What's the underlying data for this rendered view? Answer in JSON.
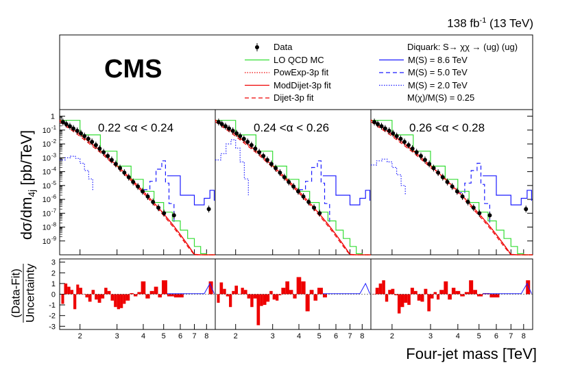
{
  "header": {
    "luminosity_value": "138 fb",
    "luminosity_exp": "-1",
    "energy": " (13 TeV)",
    "experiment": "CMS"
  },
  "axes": {
    "x_title": "Four-jet mass [TeV]",
    "y_title_main": "dσ/dm",
    "y_title_sub": "4j",
    "y_title_unit": " [pb/TeV]",
    "ratio_numerator": "(Data-Fit)",
    "ratio_denominator": "Uncertainty"
  },
  "legend": {
    "left": [
      {
        "label": "Data",
        "style": "data"
      },
      {
        "label": "LO QCD MC",
        "style": "green"
      },
      {
        "label": "PowExp-3p fit",
        "style": "red-dotted"
      },
      {
        "label": "ModDijet-3p fit",
        "style": "red-solid"
      },
      {
        "label": "Dijet-3p fit",
        "style": "red-dashed"
      }
    ],
    "right": [
      {
        "label": "Diquark: S→ χχ → (ug) (ug)",
        "style": "none"
      },
      {
        "label": "M(S) = 8.6 TeV",
        "style": "blue-solid"
      },
      {
        "label": "M(S) = 5.0 TeV",
        "style": "blue-dashed"
      },
      {
        "label": "M(S) = 2.0 TeV",
        "style": "blue-dotted"
      },
      {
        "label": "M(χ)/M(S) = 0.25",
        "style": "none"
      }
    ]
  },
  "colors": {
    "data": "#000000",
    "qcd": "#33dd33",
    "fit": "#ee0000",
    "signal": "#1a1aff",
    "ratio_bars": "#ee0000"
  },
  "chart_data": {
    "type": "line",
    "x_axis": {
      "scale": "log",
      "range_tev": [
        1.6,
        8.8
      ],
      "ticks": [
        2,
        3,
        4,
        5,
        6,
        7,
        8
      ]
    },
    "y_axis_main": {
      "scale": "log",
      "range": [
        1e-10,
        3
      ],
      "tick_exponents": [
        -9,
        -8,
        -7,
        -6,
        -5,
        -4,
        -3,
        -2,
        -1,
        0
      ],
      "tick_labels": [
        "10",
        "10",
        "10",
        "10",
        "10",
        "10",
        "10",
        "10",
        "10",
        "1"
      ]
    },
    "y_axis_ratio": {
      "range": [
        -3.3,
        3.3
      ],
      "ticks": [
        -3,
        -2,
        -1,
        0,
        1,
        2,
        3
      ]
    },
    "panels": [
      {
        "label": "0.22 <α < 0.24",
        "data_x": [
          1.66,
          1.72,
          1.79,
          1.86,
          1.94,
          2.02,
          2.1,
          2.19,
          2.28,
          2.38,
          2.48,
          2.59,
          2.71,
          2.83,
          2.96,
          3.1,
          3.25,
          3.41,
          3.58,
          3.77,
          3.97,
          4.2,
          4.45,
          4.72,
          5.02,
          5.6,
          8.2
        ],
        "data_y": [
          0.38,
          0.27,
          0.19,
          0.13,
          0.088,
          0.058,
          0.037,
          0.023,
          0.014,
          0.0082,
          0.0046,
          0.0025,
          0.00135,
          0.0007,
          0.00036,
          0.00018,
          8.5e-05,
          4e-05,
          1.8e-05,
          8.5e-06,
          3.8e-06,
          1.6e-06,
          6.5e-07,
          2.5e-07,
          1e-07,
          7e-08,
          2e-07
        ],
        "qcd_x": [
          1.6,
          2,
          2.5,
          3,
          3.5,
          4,
          4.5,
          5,
          5.5,
          6,
          6.5,
          7,
          7.5,
          8,
          8.8
        ],
        "qcd_y": [
          0.5,
          0.045,
          0.003,
          0.00025,
          2.8e-05,
          3.8e-06,
          6e-07,
          1.2e-07,
          2.8e-08,
          6e-09,
          1.5e-09,
          4e-10,
          1.2e-10,
          4e-11,
          9e-12
        ],
        "fit_x": [
          1.6,
          2,
          2.5,
          3,
          3.5,
          4,
          4.5,
          5,
          5.5,
          6,
          6.5,
          7,
          7.5,
          8,
          8.8
        ],
        "fit_y": [
          0.5,
          0.045,
          0.003,
          0.00025,
          2.8e-05,
          3.6e-06,
          5.2e-07,
          8.5e-08,
          1.5e-08,
          2.7e-09,
          5e-10,
          1e-10,
          2e-11,
          5e-12,
          1e-12
        ],
        "sig_2_x": [
          1.6,
          1.7,
          1.8,
          1.9,
          2.0,
          2.1,
          2.2,
          2.3
        ],
        "sig_2_y": [
          0.0007,
          0.001,
          0.0013,
          0.0009,
          0.0004,
          0.00012,
          3e-05,
          4e-06
        ],
        "sig_5_x": [
          4.0,
          4.3,
          4.6,
          4.9,
          5.1,
          5.3,
          5.6
        ],
        "sig_5_y": [
          5e-06,
          2e-05,
          0.00015,
          0.0006,
          1.5e-05,
          5e-07,
          2e-08
        ],
        "sig_86_x": [
          5.2,
          6,
          7,
          7.8,
          8.3,
          8.7
        ],
        "sig_86_y": [
          5e-05,
          2e-06,
          4e-07,
          1.2e-06,
          4.5e-06,
          8e-07
        ],
        "ratio_x": [
          1.63,
          1.68,
          1.74,
          1.8,
          1.86,
          1.92,
          1.98,
          2.05,
          2.12,
          2.19,
          2.27,
          2.35,
          2.43,
          2.52,
          2.61,
          2.7,
          2.8,
          2.9,
          3.0,
          3.1,
          3.2,
          3.3,
          3.45,
          3.6,
          3.75,
          3.9,
          4.1,
          4.3,
          4.5,
          4.7,
          4.9,
          5.2,
          5.6,
          8.2
        ],
        "ratio_v": [
          -0.9,
          1.0,
          0.7,
          0.4,
          -1.4,
          0.9,
          0.6,
          0.0,
          -0.3,
          -0.7,
          0.4,
          -0.5,
          -0.8,
          -0.4,
          0.6,
          0.3,
          -0.6,
          -1.2,
          -1.4,
          -1.3,
          -0.9,
          -0.6,
          0.1,
          -0.2,
          0.2,
          1.2,
          -0.4,
          0.3,
          0.7,
          -0.3,
          1.3,
          -0.2,
          -0.3,
          1.2
        ]
      },
      {
        "label": "0.24 <α < 0.26",
        "data_x": [
          1.66,
          1.72,
          1.79,
          1.86,
          1.94,
          2.02,
          2.1,
          2.19,
          2.28,
          2.38,
          2.48,
          2.59,
          2.71,
          2.83,
          2.96,
          3.1,
          3.25,
          3.41,
          3.58,
          3.77,
          3.97,
          4.2,
          4.45,
          4.72,
          5.02
        ],
        "data_y": [
          0.38,
          0.27,
          0.19,
          0.13,
          0.088,
          0.058,
          0.037,
          0.023,
          0.014,
          0.0082,
          0.0046,
          0.0025,
          0.00135,
          0.0007,
          0.00036,
          0.00018,
          8.5e-05,
          4e-05,
          1.8e-05,
          8.5e-06,
          3.8e-06,
          1.6e-06,
          6.5e-07,
          2.5e-07,
          1e-07
        ],
        "qcd_x": [
          1.6,
          2,
          2.5,
          3,
          3.5,
          4,
          4.5,
          5,
          5.5,
          6,
          6.5,
          7,
          7.5,
          8,
          8.8
        ],
        "qcd_y": [
          0.5,
          0.045,
          0.003,
          0.00025,
          2.8e-05,
          3.8e-06,
          6e-07,
          1.2e-07,
          2.8e-08,
          6e-09,
          1.5e-09,
          4e-10,
          1.2e-10,
          4e-11,
          9e-12
        ],
        "fit_x": [
          1.6,
          2,
          2.5,
          3,
          3.5,
          4,
          4.5,
          5,
          5.5,
          6,
          6.5,
          7,
          7.5,
          8,
          8.8
        ],
        "fit_y": [
          0.5,
          0.045,
          0.003,
          0.00025,
          2.8e-05,
          3.6e-06,
          5.2e-07,
          8.5e-08,
          1.5e-08,
          2.7e-09,
          5e-10,
          1e-10,
          2e-11,
          5e-12,
          1e-12
        ],
        "sig_2_x": [
          1.6,
          1.7,
          1.8,
          1.9,
          2.0,
          2.1,
          2.2,
          2.3
        ],
        "sig_2_y": [
          0.0007,
          0.002,
          0.01,
          0.02,
          0.005,
          0.0005,
          3e-05,
          2e-06
        ],
        "sig_5_x": [
          4.0,
          4.3,
          4.6,
          4.9,
          5.1,
          5.3,
          5.6
        ],
        "sig_5_y": [
          5e-06,
          2e-05,
          0.0002,
          0.0006,
          1.5e-05,
          5e-07,
          2e-08
        ],
        "sig_86_x": [
          5.2,
          6,
          7,
          7.8,
          8.3,
          8.7
        ],
        "sig_86_y": [
          5e-05,
          2e-06,
          4e-07,
          1.2e-06,
          4.5e-06,
          8e-07
        ],
        "ratio_x": [
          1.63,
          1.68,
          1.74,
          1.8,
          1.86,
          1.92,
          1.98,
          2.05,
          2.12,
          2.19,
          2.27,
          2.35,
          2.43,
          2.52,
          2.61,
          2.7,
          2.8,
          2.9,
          3.0,
          3.1,
          3.2,
          3.3,
          3.45,
          3.6,
          3.75,
          3.9,
          4.1,
          4.3,
          4.5,
          4.7,
          4.9,
          5.2
        ],
        "ratio_v": [
          -0.8,
          1.1,
          0.5,
          -0.2,
          -1.2,
          0.3,
          0.8,
          0.0,
          0.6,
          0.4,
          -0.4,
          -1.2,
          -0.4,
          -2.9,
          -1.1,
          -1.0,
          -0.7,
          0.3,
          -0.5,
          -0.6,
          -0.1,
          0.6,
          1.2,
          0.4,
          -0.4,
          1.6,
          1.2,
          -1.6,
          0.4,
          -0.6,
          0.6,
          -0.3
        ]
      },
      {
        "label": "0.26 <α < 0.28",
        "data_x": [
          1.66,
          1.72,
          1.79,
          1.86,
          1.94,
          2.02,
          2.1,
          2.19,
          2.28,
          2.38,
          2.48,
          2.59,
          2.71,
          2.83,
          2.96,
          3.1,
          3.25,
          3.41,
          3.58,
          3.77,
          3.97,
          4.2,
          4.45,
          4.72,
          5.02,
          5.6,
          8.2
        ],
        "data_y": [
          0.38,
          0.27,
          0.19,
          0.13,
          0.088,
          0.058,
          0.037,
          0.023,
          0.014,
          0.0082,
          0.0046,
          0.0025,
          0.00135,
          0.0007,
          0.00036,
          0.00018,
          8.5e-05,
          4e-05,
          1.8e-05,
          8.5e-06,
          3.8e-06,
          1.6e-06,
          6.5e-07,
          2.5e-07,
          1e-07,
          7e-08,
          2e-07
        ],
        "qcd_x": [
          1.6,
          2,
          2.5,
          3,
          3.5,
          4,
          4.5,
          5,
          5.5,
          6,
          6.5,
          7,
          7.5,
          8,
          8.8
        ],
        "qcd_y": [
          0.5,
          0.045,
          0.003,
          0.00025,
          2.8e-05,
          3.8e-06,
          6e-07,
          1.2e-07,
          2.8e-08,
          6e-09,
          1.5e-09,
          4e-10,
          1.2e-10,
          4e-11,
          9e-12
        ],
        "fit_x": [
          1.6,
          2,
          2.5,
          3,
          3.5,
          4,
          4.5,
          5,
          5.5,
          6,
          6.5,
          7,
          7.5,
          8,
          8.8
        ],
        "fit_y": [
          0.5,
          0.045,
          0.003,
          0.00025,
          2.8e-05,
          3.6e-06,
          5.2e-07,
          8.5e-08,
          1.5e-08,
          2.7e-09,
          5e-10,
          1e-10,
          2e-11,
          5e-12,
          1e-12
        ],
        "sig_2_x": [
          1.6,
          1.7,
          1.8,
          1.9,
          2.0,
          2.1,
          2.2,
          2.3
        ],
        "sig_2_y": [
          0.0003,
          0.0006,
          0.0008,
          0.0005,
          0.0002,
          6e-05,
          1e-05,
          2e-06
        ],
        "sig_5_x": [
          4.0,
          4.3,
          4.6,
          4.9,
          5.1,
          5.3,
          5.6
        ],
        "sig_5_y": [
          3e-06,
          1.5e-05,
          0.00012,
          0.0004,
          1.2e-05,
          5e-07,
          2e-08
        ],
        "sig_86_x": [
          5.2,
          6,
          7,
          7.8,
          8.3,
          8.7
        ],
        "sig_86_y": [
          5e-05,
          2e-06,
          4e-07,
          1.2e-06,
          4.5e-06,
          8e-07
        ],
        "ratio_x": [
          1.63,
          1.68,
          1.74,
          1.8,
          1.86,
          1.92,
          1.98,
          2.05,
          2.12,
          2.19,
          2.27,
          2.35,
          2.43,
          2.52,
          2.61,
          2.7,
          2.8,
          2.9,
          3.0,
          3.1,
          3.2,
          3.3,
          3.45,
          3.6,
          3.75,
          3.9,
          4.1,
          4.3,
          4.5,
          4.7,
          4.9,
          5.2,
          5.6,
          8.2
        ],
        "ratio_v": [
          0.0,
          0.6,
          1.0,
          1.3,
          -0.7,
          0.4,
          0.5,
          -0.1,
          -1.8,
          -1.2,
          -0.8,
          -1.0,
          0.6,
          0.3,
          -0.6,
          -0.7,
          0.5,
          -1.6,
          -0.4,
          0.2,
          -0.5,
          0.4,
          1.2,
          -0.5,
          0.6,
          0.3,
          -0.2,
          0.2,
          1.3,
          0.4,
          -0.2,
          0.1,
          -0.3,
          1.3
        ]
      }
    ]
  }
}
